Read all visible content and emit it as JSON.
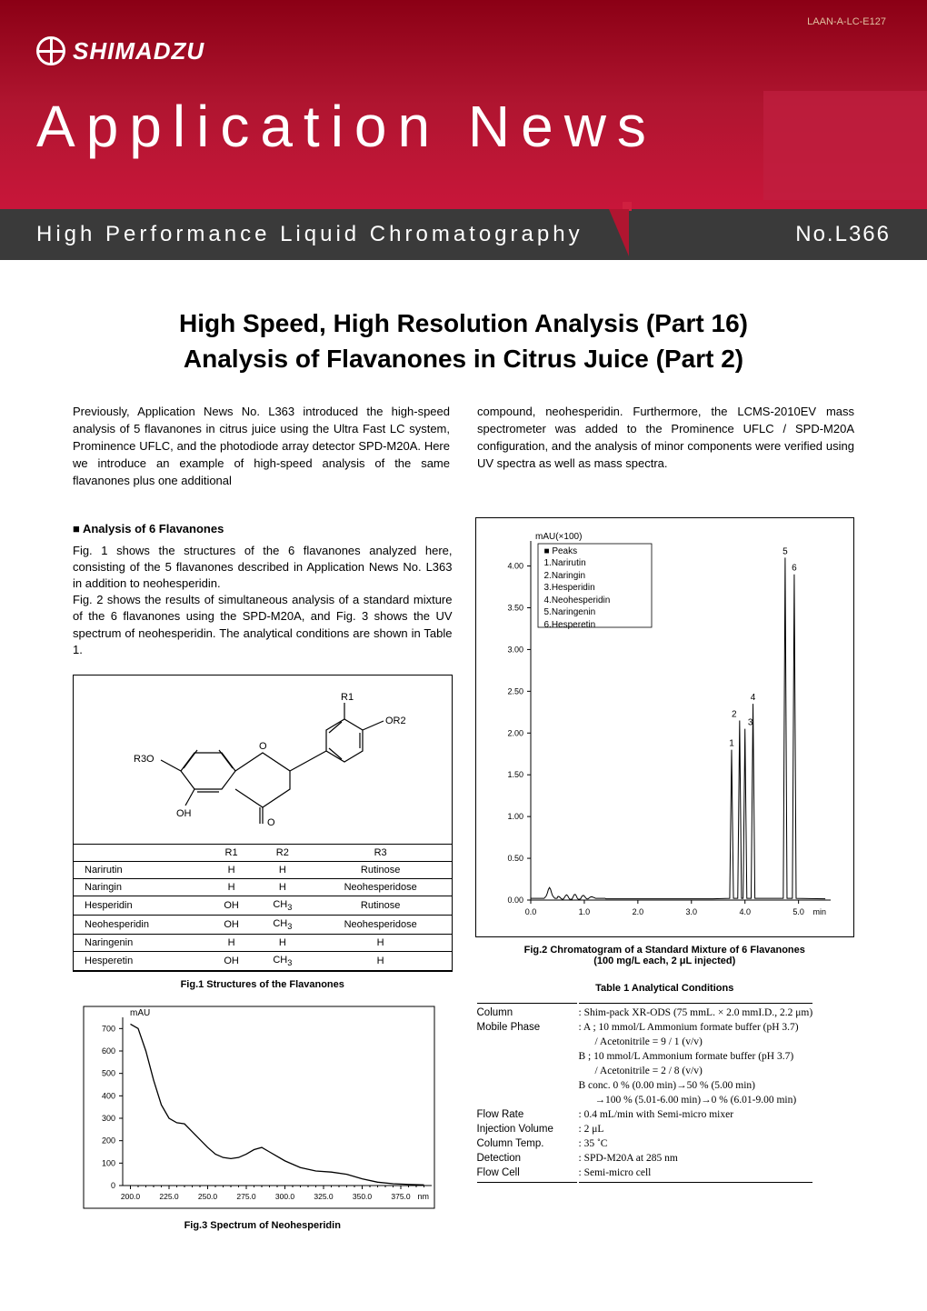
{
  "doc_id": "LAAN-A-LC-E127",
  "brand": "SHIMADZU",
  "app_news": "Application News",
  "category": "High Performance Liquid Chromatography",
  "issue": "No.L366",
  "title_line1": "High Speed, High Resolution Analysis (Part 16)",
  "title_line2": "Analysis of Flavanones in Citrus Juice (Part 2)",
  "intro_left": "Previously, Application News No. L363 introduced the high-speed analysis of 5 flavanones in citrus juice using the Ultra Fast LC system, Prominence UFLC, and the photodiode array detector SPD-M20A. Here we introduce an example of high-speed analysis of the same flavanones plus one additional",
  "intro_right": "compound, neohesperidin. Furthermore, the LCMS-2010EV mass spectrometer was added to the Prominence UFLC / SPD-M20A configuration, and the analysis of minor components were verified using UV spectra as well as mass spectra.",
  "section1": "■ Analysis of 6 Flavanones",
  "para1": "Fig. 1 shows the structures of the 6 flavanones analyzed here, consisting of the 5 flavanones described in Application News No. L363 in addition to neohesperidin.",
  "para2": "Fig. 2 shows the results of simultaneous analysis of a standard mixture of the 6 flavanones using the SPD-M20A, and Fig. 3 shows the UV spectrum of neohesperidin. The analytical conditions are shown in Table 1.",
  "structure_labels": {
    "R1": "R1",
    "R2": "R2",
    "R3": "R3",
    "OR2": "OR2",
    "R3O": "R3O",
    "O": "O",
    "OH": "OH"
  },
  "struct_table": {
    "headers": [
      "",
      "R1",
      "R2",
      "R3"
    ],
    "rows": [
      [
        "Narirutin",
        "H",
        "H",
        "Rutinose"
      ],
      [
        "Naringin",
        "H",
        "H",
        "Neohesperidose"
      ],
      [
        "Hesperidin",
        "OH",
        "CH3",
        "Rutinose"
      ],
      [
        "Neohesperidin",
        "OH",
        "CH3",
        "Neohesperidose"
      ],
      [
        "Naringenin",
        "H",
        "H",
        "H"
      ],
      [
        "Hesperetin",
        "OH",
        "CH3",
        "H"
      ]
    ]
  },
  "fig1_cap": "Fig.1 Structures of the Flavanones",
  "fig2_cap": "Fig.2 Chromatogram of a Standard Mixture of 6 Flavanones",
  "fig2_cap2": "(100 mg/L each, 2 μL injected)",
  "fig3_cap": "Fig.3 Spectrum of Neohesperidin",
  "chrom": {
    "y_label": "mAU(×100)",
    "y_ticks": [
      "0.00",
      "0.50",
      "1.00",
      "1.50",
      "2.00",
      "2.50",
      "3.00",
      "3.50",
      "4.00"
    ],
    "x_ticks": [
      "0.0",
      "1.0",
      "2.0",
      "3.0",
      "4.0",
      "5.0"
    ],
    "x_unit": "min",
    "peaks_head": "■ Peaks",
    "peaks": [
      "1.Narirutin",
      "2.Naringin",
      "3.Hesperidin",
      "4.Neohesperidin",
      "5.Naringenin",
      "6.Hesperetin"
    ],
    "peak_positions": [
      {
        "n": "1",
        "x": 3.75,
        "h": 1.8
      },
      {
        "n": "2",
        "x": 3.9,
        "h": 2.15
      },
      {
        "n": "3",
        "x": 4.0,
        "h": 2.05
      },
      {
        "n": "4",
        "x": 4.15,
        "h": 2.35
      },
      {
        "n": "5",
        "x": 4.75,
        "h": 4.1
      },
      {
        "n": "6",
        "x": 4.92,
        "h": 3.9
      }
    ],
    "baseline_noise_x_range": [
      0.3,
      1.1
    ],
    "line_color": "#000000",
    "bg_color": "#ffffff",
    "axis_color": "#000000"
  },
  "spectrum": {
    "y_label": "mAU",
    "y_ticks": [
      0,
      100,
      200,
      300,
      400,
      500,
      600,
      700
    ],
    "x_ticks": [
      200.0,
      225.0,
      250.0,
      275.0,
      300.0,
      325.0,
      350.0,
      375.0
    ],
    "x_unit": "nm",
    "points": [
      [
        200,
        720
      ],
      [
        205,
        700
      ],
      [
        210,
        600
      ],
      [
        215,
        470
      ],
      [
        220,
        360
      ],
      [
        225,
        300
      ],
      [
        230,
        280
      ],
      [
        235,
        275
      ],
      [
        240,
        240
      ],
      [
        250,
        170
      ],
      [
        255,
        140
      ],
      [
        260,
        125
      ],
      [
        265,
        120
      ],
      [
        270,
        125
      ],
      [
        275,
        140
      ],
      [
        280,
        160
      ],
      [
        285,
        170
      ],
      [
        290,
        150
      ],
      [
        300,
        110
      ],
      [
        310,
        80
      ],
      [
        320,
        65
      ],
      [
        330,
        60
      ],
      [
        340,
        50
      ],
      [
        350,
        30
      ],
      [
        360,
        15
      ],
      [
        370,
        8
      ],
      [
        380,
        5
      ],
      [
        390,
        3
      ]
    ],
    "line_color": "#000000",
    "bg_color": "#ffffff"
  },
  "table1_title": "Table 1  Analytical Conditions",
  "table1": [
    [
      "Column",
      ": Shim-pack XR-ODS (75 mmL. × 2.0 mmI.D., 2.2 μm)"
    ],
    [
      "Mobile Phase",
      ": A ; 10 mmol/L Ammonium formate buffer (pH 3.7)"
    ],
    [
      "",
      "/ Acetonitrile = 9 / 1 (v/v)"
    ],
    [
      "",
      "B ; 10 mmol/L Ammonium formate buffer (pH 3.7)"
    ],
    [
      "",
      "/ Acetonitrile = 2 / 8 (v/v)"
    ],
    [
      "",
      "B conc.  0 % (0.00 min)→50 % (5.00 min)"
    ],
    [
      "",
      "→100 % (5.01-6.00 min)→0 % (6.01-9.00 min)"
    ],
    [
      "Flow Rate",
      ": 0.4 mL/min with Semi-micro mixer"
    ],
    [
      "Injection Volume",
      ": 2 μL"
    ],
    [
      "Column Temp.",
      ": 35 ˚C"
    ],
    [
      "Detection",
      ": SPD-M20A at 285 nm"
    ],
    [
      "Flow Cell",
      ": Semi-micro cell"
    ]
  ],
  "colors": {
    "header_gradient_top": "#8b0015",
    "header_gradient_mid": "#b01530",
    "header_gradient_bot": "#c8163a",
    "bar_bg": "#3a3a3a",
    "accent": "#d02040"
  }
}
